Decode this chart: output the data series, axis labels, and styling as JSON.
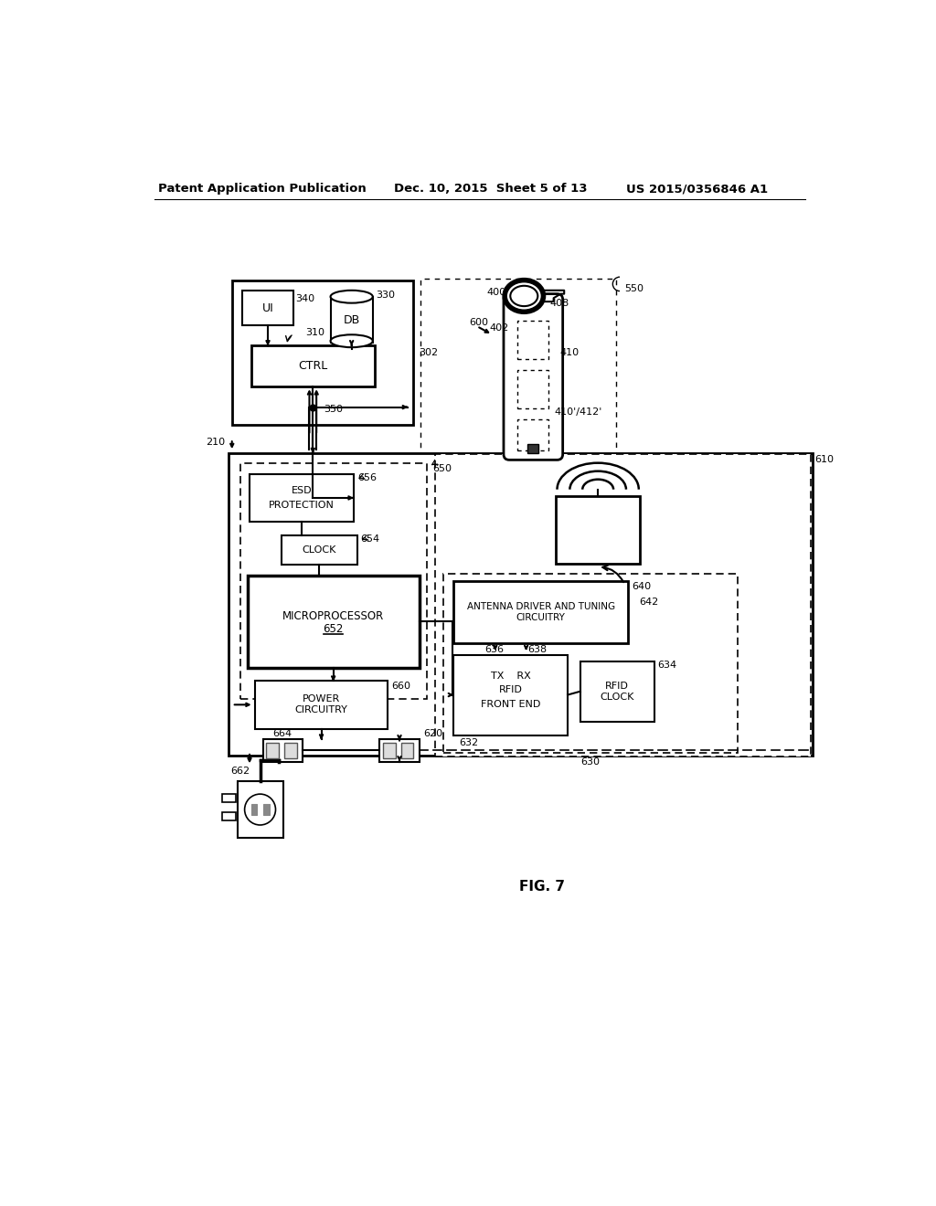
{
  "header_left": "Patent Application Publication",
  "header_mid": "Dec. 10, 2015  Sheet 5 of 13",
  "header_right": "US 2015/0356846 A1",
  "fig_label": "FIG. 7",
  "bg_color": "#ffffff",
  "line_color": "#000000"
}
